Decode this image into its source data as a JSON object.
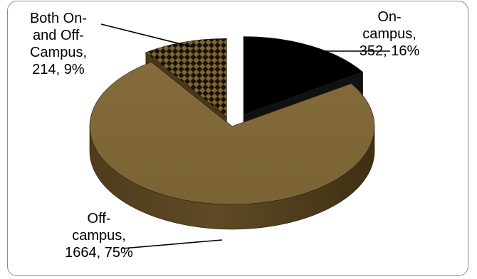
{
  "chart_data": {
    "type": "pie",
    "style": "3d-exploded",
    "title": "",
    "slices": [
      {
        "label": "On-campus",
        "value": 352,
        "percent": "16%",
        "color": "#000000",
        "pattern": "solid"
      },
      {
        "label": "Off-campus",
        "value": 1664,
        "percent": "75%",
        "color": "#7b6537",
        "pattern": "solid"
      },
      {
        "label": "Both On- and Off-Campus",
        "value": 214,
        "percent": "9%",
        "color": "#7b6537",
        "pattern": "checkerboard"
      }
    ],
    "labels": {
      "on_campus": [
        "On-",
        "campus,",
        "352, 16%"
      ],
      "off_campus": [
        "Off-",
        "campus,",
        "1664, 75%"
      ],
      "both": [
        "Both On-",
        "and Off-",
        "Campus,",
        "214, 9%"
      ]
    },
    "legend": "none"
  }
}
